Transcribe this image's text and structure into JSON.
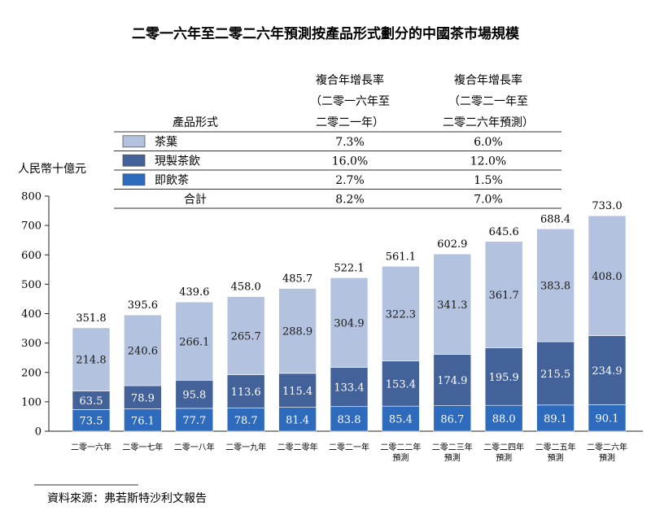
{
  "chart_data": {
    "type": "bar",
    "stacked": true,
    "title": "二零一六年至二零二六年預測按產品形式劃分的中國茶市場規模",
    "ylabel": "人民幣十億元",
    "ylim": [
      0,
      800
    ],
    "yticks": [
      "0",
      "100",
      "200",
      "300",
      "400",
      "500",
      "600",
      "700",
      "800"
    ],
    "categories": [
      [
        "二零一六年"
      ],
      [
        "二零一七年"
      ],
      [
        "二零一八年"
      ],
      [
        "二零一九年"
      ],
      [
        "二零二零年"
      ],
      [
        "二零二一年"
      ],
      [
        "二零二二年",
        "預測"
      ],
      [
        "二零二三年",
        "預測"
      ],
      [
        "二零二四年",
        "預測"
      ],
      [
        "二零二五年",
        "預測"
      ],
      [
        "二零二六年",
        "預測"
      ]
    ],
    "series": [
      {
        "name": "即飲茶",
        "color": "#2e6bbd",
        "values": [
          73.5,
          76.1,
          77.7,
          78.7,
          81.4,
          83.8,
          85.4,
          86.7,
          88.0,
          89.1,
          90.1
        ],
        "labels": [
          "73.5",
          "76.1",
          "77.7",
          "78.7",
          "81.4",
          "83.8",
          "85.4",
          "86.7",
          "88.0",
          "89.1",
          "90.1"
        ]
      },
      {
        "name": "現製茶飲",
        "color": "#43629a",
        "values": [
          63.5,
          78.9,
          95.8,
          113.6,
          115.4,
          133.4,
          153.4,
          174.9,
          195.9,
          215.5,
          234.9
        ],
        "labels": [
          "63.5",
          "78.9",
          "95.8",
          "113.6",
          "115.4",
          "133.4",
          "153.4",
          "174.9",
          "195.9",
          "215.5",
          "234.9"
        ]
      },
      {
        "name": "茶葉",
        "color": "#b3c2de",
        "values": [
          214.8,
          240.6,
          266.1,
          265.7,
          288.9,
          304.9,
          322.3,
          341.3,
          361.7,
          383.8,
          408.0
        ],
        "labels": [
          "214.8",
          "240.6",
          "266.1",
          "265.7",
          "288.9",
          "304.9",
          "322.3",
          "341.3",
          "361.7",
          "383.8",
          "408.0"
        ]
      }
    ],
    "totals": [
      351.8,
      395.6,
      439.6,
      458.0,
      485.7,
      522.1,
      561.1,
      602.9,
      645.6,
      688.4,
      733.0
    ],
    "total_labels": [
      "351.8",
      "395.6",
      "439.6",
      "458.0",
      "485.7",
      "522.1",
      "561.1",
      "602.9",
      "645.6",
      "688.4",
      "733.0"
    ],
    "cagr_table": {
      "row_header": "產品形式",
      "columns": [
        [
          "複合年增長率",
          "（二零一六年至",
          "二零二一年）"
        ],
        [
          "複合年增長率",
          "（二零二一年至",
          "二零二六年預測）"
        ]
      ],
      "rows": [
        {
          "label": "茶葉",
          "color": "#b3c2de",
          "values": [
            "7.3%",
            "6.0%"
          ]
        },
        {
          "label": "現製茶飲",
          "color": "#43629a",
          "values": [
            "16.0%",
            "12.0%"
          ]
        },
        {
          "label": "即飲茶",
          "color": "#2e6bbd",
          "values": [
            "2.7%",
            "1.5%"
          ]
        },
        {
          "label": "合計",
          "color": "",
          "values": [
            "8.2%",
            "7.0%"
          ]
        }
      ]
    },
    "source": "資料來源：弗若斯特沙利文報告"
  }
}
